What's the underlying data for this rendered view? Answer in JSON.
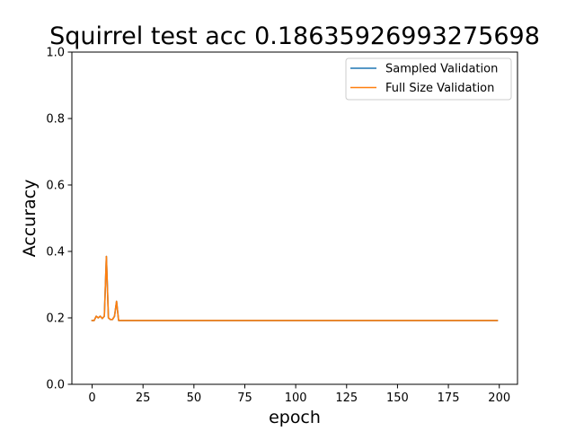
{
  "chart_data": {
    "type": "line",
    "title": "Squirrel test acc 0.18635926993275698",
    "xlabel": "epoch",
    "ylabel": "Accuracy",
    "xlim": [
      -9.95,
      208.95
    ],
    "ylim": [
      0.0,
      1.0
    ],
    "xticks": [
      0,
      25,
      50,
      75,
      100,
      125,
      150,
      175,
      200
    ],
    "yticks": [
      0.0,
      0.2,
      0.4,
      0.6,
      0.8,
      1.0
    ],
    "ytick_labels": [
      "0.0",
      "0.2",
      "0.4",
      "0.6",
      "0.8",
      "1.0"
    ],
    "grid": false,
    "legend_position": "upper right",
    "series": [
      {
        "name": "Sampled Validation",
        "color": "#1f77b4",
        "x": [
          0,
          1,
          2,
          3,
          4,
          5,
          6,
          7,
          8,
          9,
          10,
          11,
          12,
          13,
          14,
          199
        ],
        "y": [
          0.192,
          0.192,
          0.205,
          0.2,
          0.205,
          0.198,
          0.205,
          0.385,
          0.2,
          0.195,
          0.195,
          0.205,
          0.25,
          0.192,
          0.192,
          0.192
        ]
      },
      {
        "name": "Full Size Validation",
        "color": "#ff7f0e",
        "x": [
          0,
          1,
          2,
          3,
          4,
          5,
          6,
          7,
          8,
          9,
          10,
          11,
          12,
          13,
          14,
          199
        ],
        "y": [
          0.192,
          0.192,
          0.205,
          0.2,
          0.205,
          0.198,
          0.205,
          0.385,
          0.2,
          0.195,
          0.195,
          0.205,
          0.25,
          0.192,
          0.192,
          0.192
        ]
      }
    ]
  }
}
